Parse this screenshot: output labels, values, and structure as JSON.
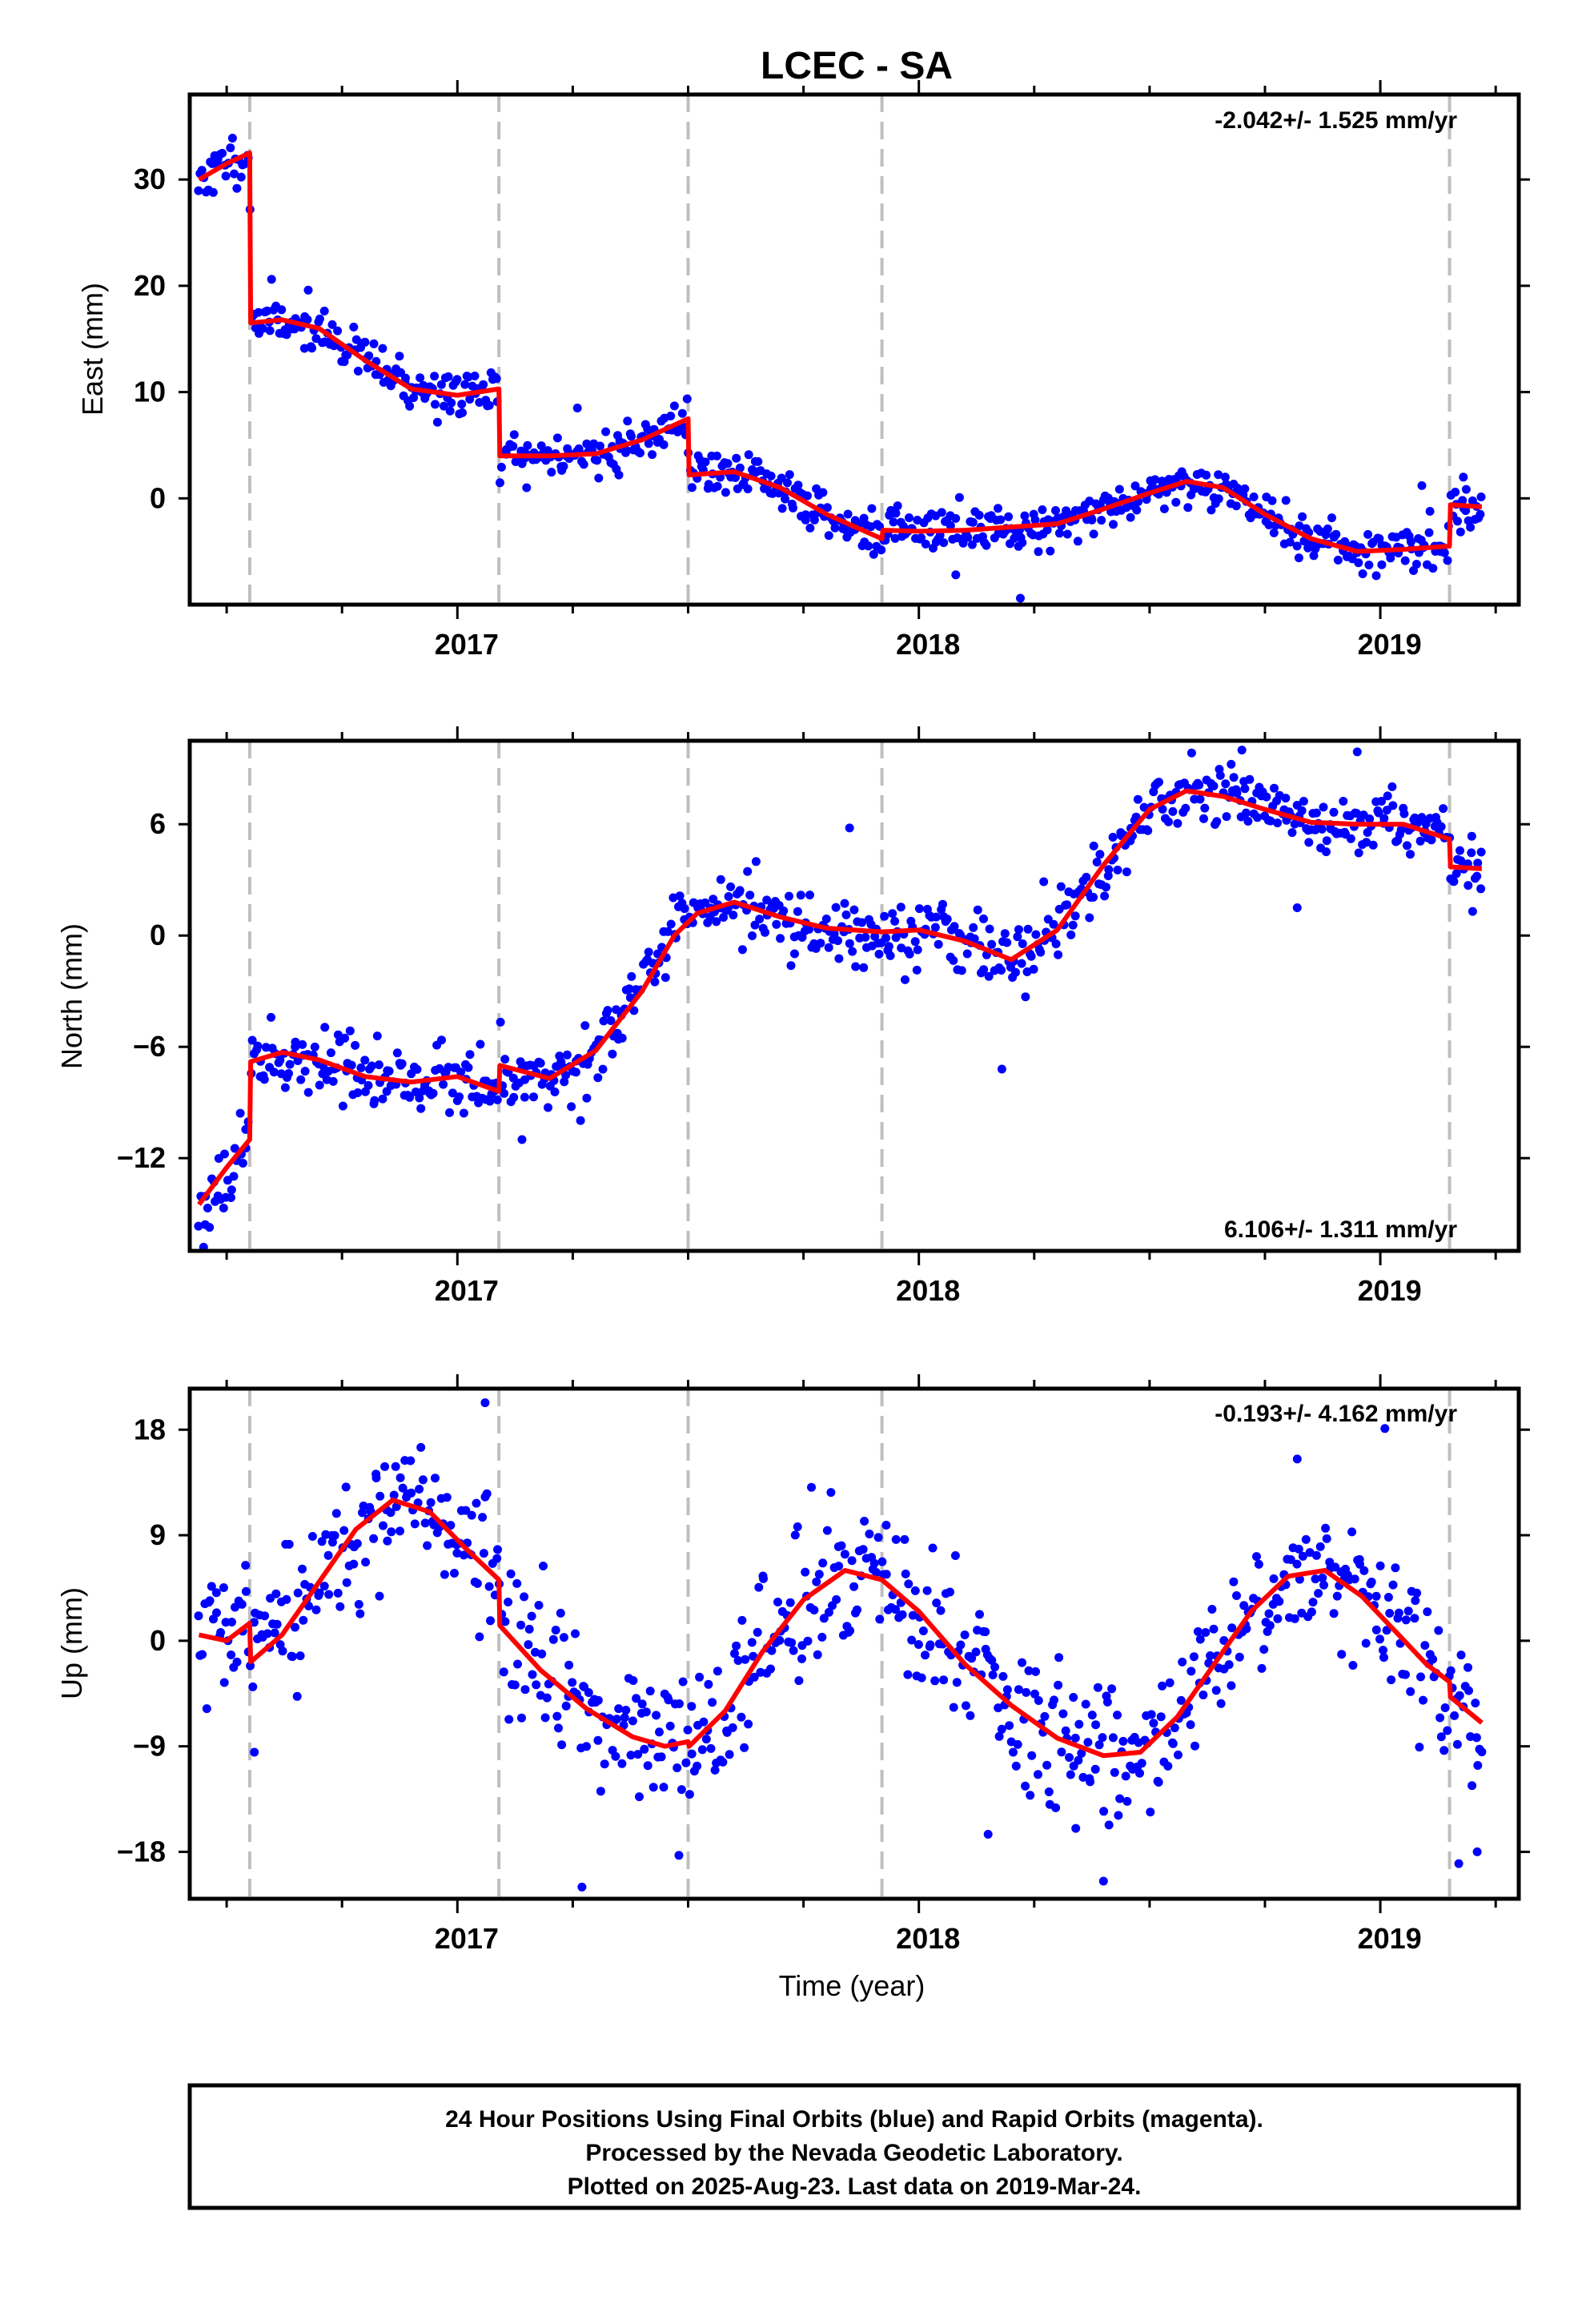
{
  "title": "LCEC - SA",
  "colors": {
    "points": "#0000ff",
    "model": "#ff0000",
    "steps": "#bfbfbf",
    "frame": "#000000"
  },
  "xlabel": "Time (year)",
  "footer": {
    "line1": "24 Hour Positions Using Final Orbits (blue) and Rapid Orbits (magenta).",
    "line2": "Processed by the Nevada Geodetic Laboratory.",
    "line3": "Plotted on 2025-Aug-23. Last data on 2019-Mar-24."
  },
  "chart_data": [
    {
      "type": "scatter",
      "component": "East",
      "ylabel": "East (mm)",
      "rate_label": "-2.042+/- 1.525 mm/yr",
      "xlim": [
        2016.42,
        2019.3
      ],
      "ylim": [
        -10,
        38
      ],
      "yticks": [
        0,
        10,
        20,
        30
      ],
      "xticks": [
        2017,
        2018,
        2019
      ],
      "step_epochs": [
        2016.55,
        2017.09,
        2017.5,
        2017.92,
        2019.15
      ],
      "model": [
        [
          2016.44,
          30.0
        ],
        [
          2016.5,
          31.5
        ],
        [
          2016.55,
          32.5
        ],
        [
          2016.552,
          16.5
        ],
        [
          2016.62,
          16.8
        ],
        [
          2016.7,
          16.0
        ],
        [
          2016.8,
          13.0
        ],
        [
          2016.9,
          10.3
        ],
        [
          2017.0,
          9.7
        ],
        [
          2017.09,
          10.3
        ],
        [
          2017.092,
          4.0
        ],
        [
          2017.2,
          4.0
        ],
        [
          2017.3,
          4.2
        ],
        [
          2017.4,
          5.5
        ],
        [
          2017.5,
          7.5
        ],
        [
          2017.502,
          2.2
        ],
        [
          2017.6,
          2.5
        ],
        [
          2017.7,
          1.0
        ],
        [
          2017.8,
          -1.5
        ],
        [
          2017.92,
          -3.8
        ],
        [
          2017.922,
          -3.0
        ],
        [
          2018.0,
          -3.1
        ],
        [
          2018.1,
          -3.0
        ],
        [
          2018.2,
          -2.7
        ],
        [
          2018.3,
          -2.4
        ],
        [
          2018.4,
          -1.0
        ],
        [
          2018.5,
          0.5
        ],
        [
          2018.58,
          1.6
        ],
        [
          2018.66,
          1.0
        ],
        [
          2018.75,
          -1.5
        ],
        [
          2018.85,
          -3.8
        ],
        [
          2018.95,
          -5.0
        ],
        [
          2019.05,
          -4.8
        ],
        [
          2019.15,
          -4.5
        ],
        [
          2019.152,
          -0.6
        ],
        [
          2019.22,
          -0.8
        ]
      ],
      "points": {
        "x_start": 2016.44,
        "x_end": 2019.22,
        "count": 700,
        "seed": 11,
        "noise_mm": 1.1,
        "outliers": [
          [
            2017.15,
            1.0
          ],
          [
            2017.26,
            8.5
          ],
          [
            2018.08,
            -7.2
          ],
          [
            2018.22,
            -9.4
          ],
          [
            2019.09,
            1.2
          ],
          [
            2019.18,
            2.0
          ],
          [
            2017.35,
            2.2
          ]
        ]
      }
    },
    {
      "type": "scatter",
      "component": "North",
      "ylabel": "North (mm)",
      "rate_label": "6.106+/- 1.311 mm/yr",
      "xlim": [
        2016.42,
        2019.3
      ],
      "ylim": [
        -17,
        10.5
      ],
      "yticks": [
        -12,
        -6,
        0,
        6
      ],
      "xticks": [
        2017,
        2018,
        2019
      ],
      "step_epochs": [
        2016.55,
        2017.09,
        2017.5,
        2017.92,
        2019.15
      ],
      "model": [
        [
          2016.44,
          -14.5
        ],
        [
          2016.5,
          -12.5
        ],
        [
          2016.55,
          -11.0
        ],
        [
          2016.552,
          -6.8
        ],
        [
          2016.62,
          -6.3
        ],
        [
          2016.7,
          -6.7
        ],
        [
          2016.8,
          -7.6
        ],
        [
          2016.9,
          -7.9
        ],
        [
          2017.0,
          -7.6
        ],
        [
          2017.09,
          -8.4
        ],
        [
          2017.092,
          -7.0
        ],
        [
          2017.2,
          -7.7
        ],
        [
          2017.3,
          -6.2
        ],
        [
          2017.4,
          -3.0
        ],
        [
          2017.47,
          0.0
        ],
        [
          2017.52,
          1.2
        ],
        [
          2017.6,
          1.8
        ],
        [
          2017.7,
          1.0
        ],
        [
          2017.8,
          0.4
        ],
        [
          2017.92,
          0.2
        ],
        [
          2018.0,
          0.3
        ],
        [
          2018.1,
          -0.3
        ],
        [
          2018.2,
          -1.3
        ],
        [
          2018.3,
          0.3
        ],
        [
          2018.4,
          3.8
        ],
        [
          2018.5,
          6.8
        ],
        [
          2018.58,
          7.8
        ],
        [
          2018.66,
          7.5
        ],
        [
          2018.75,
          6.8
        ],
        [
          2018.85,
          6.1
        ],
        [
          2018.95,
          6.0
        ],
        [
          2019.05,
          6.0
        ],
        [
          2019.15,
          5.2
        ],
        [
          2019.152,
          3.7
        ],
        [
          2019.22,
          3.6
        ]
      ],
      "points": {
        "x_start": 2016.44,
        "x_end": 2019.22,
        "count": 700,
        "seed": 23,
        "noise_mm": 0.9,
        "outliers": [
          [
            2016.45,
            -16.8
          ],
          [
            2017.85,
            5.8
          ],
          [
            2018.18,
            -7.2
          ],
          [
            2018.7,
            10.0
          ],
          [
            2018.95,
            9.9
          ],
          [
            2018.82,
            1.5
          ],
          [
            2019.2,
            1.3
          ],
          [
            2017.14,
            -11.0
          ]
        ]
      }
    },
    {
      "type": "scatter",
      "component": "Up",
      "ylabel": "Up (mm)",
      "rate_label": "-0.193+/- 4.162 mm/yr",
      "xlim": [
        2016.42,
        2019.3
      ],
      "ylim": [
        -22,
        21.5
      ],
      "yticks": [
        -18,
        -9,
        0,
        9,
        18
      ],
      "xticks": [
        2017,
        2018,
        2019
      ],
      "step_epochs": [
        2016.55,
        2017.09,
        2017.5,
        2017.92,
        2019.15
      ],
      "model": [
        [
          2016.44,
          0.5
        ],
        [
          2016.5,
          0.0
        ],
        [
          2016.55,
          1.5
        ],
        [
          2016.552,
          -1.8
        ],
        [
          2016.62,
          0.5
        ],
        [
          2016.7,
          5.0
        ],
        [
          2016.78,
          9.5
        ],
        [
          2016.86,
          12.0
        ],
        [
          2016.94,
          11.0
        ],
        [
          2017.02,
          7.8
        ],
        [
          2017.09,
          5.2
        ],
        [
          2017.092,
          1.3
        ],
        [
          2017.18,
          -2.5
        ],
        [
          2017.28,
          -5.8
        ],
        [
          2017.38,
          -8.2
        ],
        [
          2017.45,
          -9.0
        ],
        [
          2017.5,
          -8.6
        ],
        [
          2017.502,
          -9.0
        ],
        [
          2017.58,
          -6.0
        ],
        [
          2017.66,
          -1.0
        ],
        [
          2017.75,
          3.5
        ],
        [
          2017.84,
          6.0
        ],
        [
          2017.92,
          5.2
        ],
        [
          2018.0,
          2.5
        ],
        [
          2018.1,
          -2.0
        ],
        [
          2018.2,
          -5.5
        ],
        [
          2018.3,
          -8.3
        ],
        [
          2018.4,
          -9.8
        ],
        [
          2018.48,
          -9.5
        ],
        [
          2018.56,
          -6.5
        ],
        [
          2018.64,
          -2.0
        ],
        [
          2018.72,
          2.5
        ],
        [
          2018.8,
          5.5
        ],
        [
          2018.88,
          6.0
        ],
        [
          2018.96,
          3.8
        ],
        [
          2019.04,
          0.5
        ],
        [
          2019.1,
          -2.0
        ],
        [
          2019.15,
          -3.5
        ],
        [
          2019.152,
          -4.8
        ],
        [
          2019.22,
          -7.0
        ]
      ],
      "points": {
        "x_start": 2016.44,
        "x_end": 2019.22,
        "count": 700,
        "seed": 37,
        "noise_mm": 3.0,
        "outliers": [
          [
            2017.06,
            20.3
          ],
          [
            2017.27,
            -21.0
          ],
          [
            2017.48,
            -18.3
          ],
          [
            2018.34,
            -16.0
          ],
          [
            2018.4,
            -20.5
          ],
          [
            2019.01,
            18.1
          ],
          [
            2019.17,
            -19.0
          ],
          [
            2019.21,
            -18.0
          ],
          [
            2016.56,
            -9.5
          ],
          [
            2018.15,
            -16.5
          ],
          [
            2018.82,
            15.5
          ]
        ]
      }
    }
  ]
}
